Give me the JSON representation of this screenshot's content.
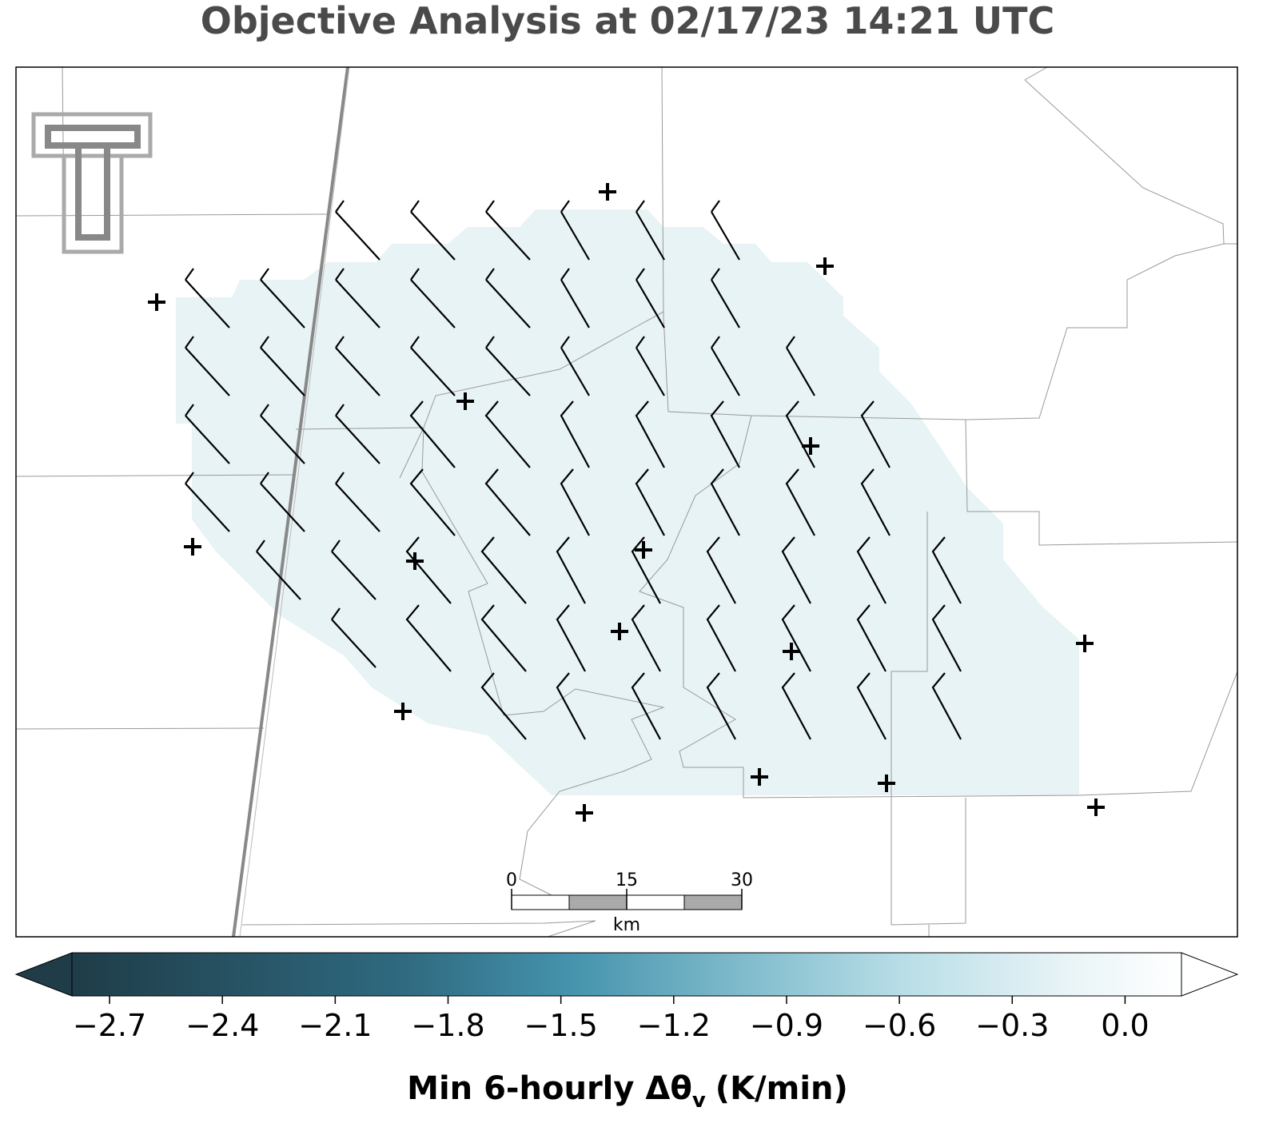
{
  "title": "Objective Analysis at 02/17/23 14:21 UTC",
  "scale_bar": {
    "ticks": [
      0,
      15,
      30
    ],
    "lim": [
      0,
      30
    ],
    "unit": "km"
  },
  "colorbar": {
    "lim": [
      -2.8,
      0.15
    ],
    "ticks": [
      {
        "value": -2.7,
        "label": "−2.7"
      },
      {
        "value": -2.4,
        "label": "−2.4"
      },
      {
        "value": -2.1,
        "label": "−2.1"
      },
      {
        "value": -1.8,
        "label": "−1.8"
      },
      {
        "value": -1.5,
        "label": "−1.5"
      },
      {
        "value": -1.2,
        "label": "−1.2"
      },
      {
        "value": -0.9,
        "label": "−0.9"
      },
      {
        "value": -0.6,
        "label": "−0.6"
      },
      {
        "value": -0.3,
        "label": "−0.3"
      },
      {
        "value": 0.0,
        "label": "0.0"
      }
    ],
    "label": [
      "Min 6-hourly Δθ",
      "v",
      "(K/min)"
    ]
  }
}
